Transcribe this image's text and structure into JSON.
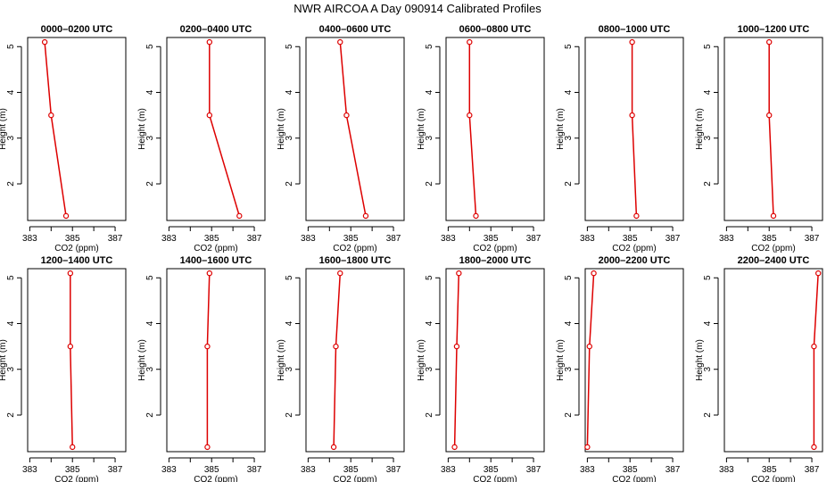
{
  "title": "NWR AIRCOA A  Day 090914  Calibrated Profiles",
  "chart_data": {
    "type": "line",
    "line_color": "#dd0000",
    "marker_color": "#dd0000",
    "xlabel": "CO2 (ppm)",
    "ylabel": "Height (m)",
    "xlim": [
      382.9,
      387.5
    ],
    "ylim": [
      1.2,
      5.2
    ],
    "xticks": [
      383,
      384,
      385,
      386,
      387
    ],
    "xtick_labels": [
      "383",
      "",
      "385",
      "",
      "387"
    ],
    "yticks": [
      2,
      3,
      4,
      5
    ],
    "ytick_labels": [
      "2",
      "3",
      "4",
      "5"
    ],
    "grid": false,
    "panels": [
      {
        "title": "0000–0200 UTC",
        "x": [
          383.7,
          384.0,
          384.7
        ],
        "y": [
          5.1,
          3.5,
          1.3
        ]
      },
      {
        "title": "0200–0400 UTC",
        "x": [
          384.9,
          384.9,
          386.3
        ],
        "y": [
          5.1,
          3.5,
          1.3
        ]
      },
      {
        "title": "0400–0600 UTC",
        "x": [
          384.5,
          384.8,
          385.7
        ],
        "y": [
          5.1,
          3.5,
          1.3
        ]
      },
      {
        "title": "0600–0800 UTC",
        "x": [
          384.0,
          384.0,
          384.3
        ],
        "y": [
          5.1,
          3.5,
          1.3
        ]
      },
      {
        "title": "0800–1000 UTC",
        "x": [
          385.1,
          385.1,
          385.3
        ],
        "y": [
          5.1,
          3.5,
          1.3
        ]
      },
      {
        "title": "1000–1200 UTC",
        "x": [
          385.0,
          385.0,
          385.2
        ],
        "y": [
          5.1,
          3.5,
          1.3
        ]
      },
      {
        "title": "1200–1400 UTC",
        "x": [
          384.9,
          384.9,
          385.0
        ],
        "y": [
          5.1,
          3.5,
          1.3
        ]
      },
      {
        "title": "1400–1600 UTC",
        "x": [
          384.9,
          384.8,
          384.8
        ],
        "y": [
          5.1,
          3.5,
          1.3
        ]
      },
      {
        "title": "1600–1800 UTC",
        "x": [
          384.5,
          384.3,
          384.2
        ],
        "y": [
          5.1,
          3.5,
          1.3
        ]
      },
      {
        "title": "1800–2000 UTC",
        "x": [
          383.5,
          383.4,
          383.3
        ],
        "y": [
          5.1,
          3.5,
          1.3
        ]
      },
      {
        "title": "2000–2200 UTC",
        "x": [
          383.3,
          383.1,
          383.0
        ],
        "y": [
          5.1,
          3.5,
          1.3
        ]
      },
      {
        "title": "2200–2400 UTC",
        "x": [
          387.3,
          387.1,
          387.1
        ],
        "y": [
          5.1,
          3.5,
          1.3
        ]
      }
    ]
  }
}
